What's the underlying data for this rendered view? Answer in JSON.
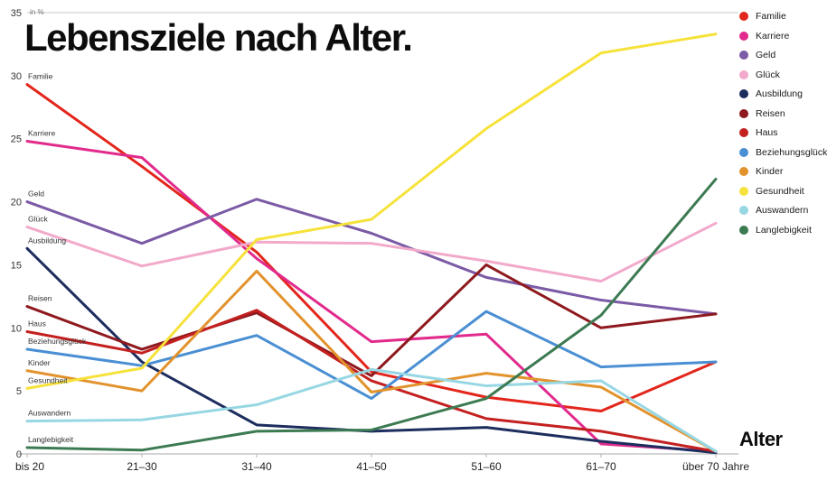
{
  "title": "Lebensziele nach Alter.",
  "chart_data": {
    "type": "line",
    "title": "Lebensziele nach Alter.",
    "xlabel": "Alter",
    "ylabel": "in %",
    "ylim": [
      0,
      35
    ],
    "yticks": [
      0,
      5,
      10,
      15,
      20,
      25,
      30,
      35
    ],
    "grid": false,
    "legend_position": "top-right",
    "categories": [
      "bis 20",
      "21–30",
      "31–40",
      "41–50",
      "51–60",
      "61–70",
      "über 70 Jahre"
    ],
    "series": [
      {
        "name": "Familie",
        "color": "#e3261c",
        "values": [
          29.3,
          22.8,
          16.0,
          6.5,
          4.5,
          3.4,
          7.3
        ]
      },
      {
        "name": "Karriere",
        "color": "#e12a8c",
        "values": [
          24.8,
          23.5,
          15.5,
          8.9,
          9.5,
          0.8,
          0.2
        ]
      },
      {
        "name": "Geld",
        "color": "#7b5aa6",
        "values": [
          20.0,
          16.7,
          20.2,
          17.5,
          14.0,
          12.2,
          11.1
        ]
      },
      {
        "name": "Glück",
        "color": "#f2a9cb",
        "values": [
          18.0,
          14.9,
          16.8,
          16.7,
          15.3,
          13.7,
          18.3
        ]
      },
      {
        "name": "Ausbildung",
        "color": "#1c2d5e",
        "values": [
          16.3,
          7.3,
          2.3,
          1.8,
          2.1,
          1.0,
          0.1
        ]
      },
      {
        "name": "Reisen",
        "color": "#8e191e",
        "values": [
          11.7,
          8.3,
          11.2,
          6.2,
          15.0,
          10.0,
          11.1
        ]
      },
      {
        "name": "Haus",
        "color": "#c3201f",
        "values": [
          9.7,
          8.0,
          11.4,
          5.8,
          2.8,
          1.8,
          0.2
        ]
      },
      {
        "name": "Beziehungsglück",
        "color": "#4a8fd3",
        "values": [
          8.3,
          7.0,
          9.4,
          4.4,
          11.3,
          6.9,
          7.3
        ]
      },
      {
        "name": "Kinder",
        "color": "#e2932d",
        "values": [
          6.6,
          5.0,
          14.5,
          4.9,
          6.4,
          5.3,
          0.2
        ]
      },
      {
        "name": "Gesundheit",
        "color": "#f6e23a",
        "values": [
          5.2,
          6.8,
          17.0,
          18.6,
          25.8,
          31.8,
          33.3
        ]
      },
      {
        "name": "Auswandern",
        "color": "#97d7e3",
        "values": [
          2.6,
          2.7,
          3.9,
          6.7,
          5.4,
          5.8,
          0.2
        ]
      },
      {
        "name": "Langlebigkeit",
        "color": "#3c7a52",
        "values": [
          0.5,
          0.3,
          1.8,
          1.9,
          4.4,
          11.0,
          21.8
        ]
      }
    ]
  }
}
